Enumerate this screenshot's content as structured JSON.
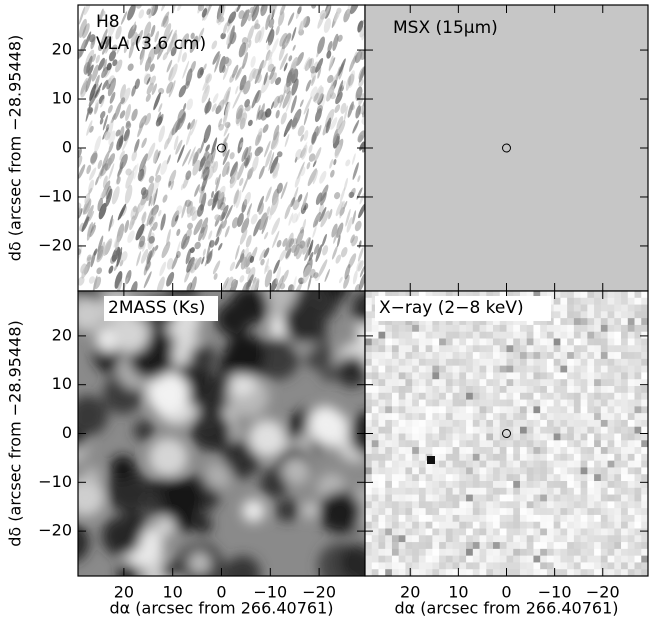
{
  "chart_data": [
    {
      "type": "image",
      "title": [
        "H8",
        "VLA (3.6 cm)"
      ],
      "ylabel": "dδ (arcsec from −28.95448)",
      "xlim": [
        29.4,
        -29.4
      ],
      "ylim": [
        -29.2,
        29.2
      ],
      "xticks": [
        20,
        10,
        0,
        {
          "value": -10,
          "label": "−10"
        },
        {
          "value": -20,
          "label": "−20"
        }
      ],
      "yticks": [
        {
          "value": -20,
          "label": "−20"
        },
        {
          "value": -10,
          "label": "−10"
        },
        0,
        10,
        20
      ],
      "xtick_labels": false,
      "ytick_labels": true,
      "marker": {
        "x": 0,
        "y": 0
      }
    },
    {
      "type": "image",
      "title": [
        "MSX (15μm)"
      ],
      "xlim": [
        29.4,
        -29.4
      ],
      "ylim": [
        -29.2,
        29.2
      ],
      "xticks": [
        20,
        10,
        0,
        {
          "value": -10,
          "label": "−10"
        },
        {
          "value": -20,
          "label": "−20"
        }
      ],
      "yticks": [
        {
          "value": -20,
          "label": "−20"
        },
        {
          "value": -10,
          "label": "−10"
        },
        0,
        10,
        20
      ],
      "xtick_labels": false,
      "ytick_labels": false,
      "marker": {
        "x": 0,
        "y": 0
      }
    },
    {
      "type": "image",
      "title": [
        "2MASS (Ks)"
      ],
      "ylabel": "dδ (arcsec from −28.95448)",
      "xlabel": "dα (arcsec from 266.40761)",
      "xlim": [
        29.4,
        -29.4
      ],
      "ylim": [
        -29.2,
        29.2
      ],
      "xticks": [
        20,
        10,
        0,
        {
          "value": -10,
          "label": "−10"
        },
        {
          "value": -20,
          "label": "−20"
        }
      ],
      "yticks": [
        {
          "value": -20,
          "label": "−20"
        },
        {
          "value": -10,
          "label": "−10"
        },
        0,
        10,
        20
      ],
      "xtick_labels": true,
      "ytick_labels": true
    },
    {
      "type": "image",
      "title": [
        "X−ray (2−8 keV)"
      ],
      "xlabel": "dα (arcsec from 266.40761)",
      "xlim": [
        29.4,
        -29.4
      ],
      "ylim": [
        -29.2,
        29.2
      ],
      "xticks": [
        20,
        10,
        0,
        {
          "value": -10,
          "label": "−10"
        },
        {
          "value": -20,
          "label": "−20"
        }
      ],
      "yticks": [
        {
          "value": -20,
          "label": "−20"
        },
        {
          "value": -10,
          "label": "−10"
        },
        0,
        10,
        20
      ],
      "xtick_labels": true,
      "ytick_labels": false,
      "marker": {
        "x": 0,
        "y": 0
      }
    }
  ]
}
